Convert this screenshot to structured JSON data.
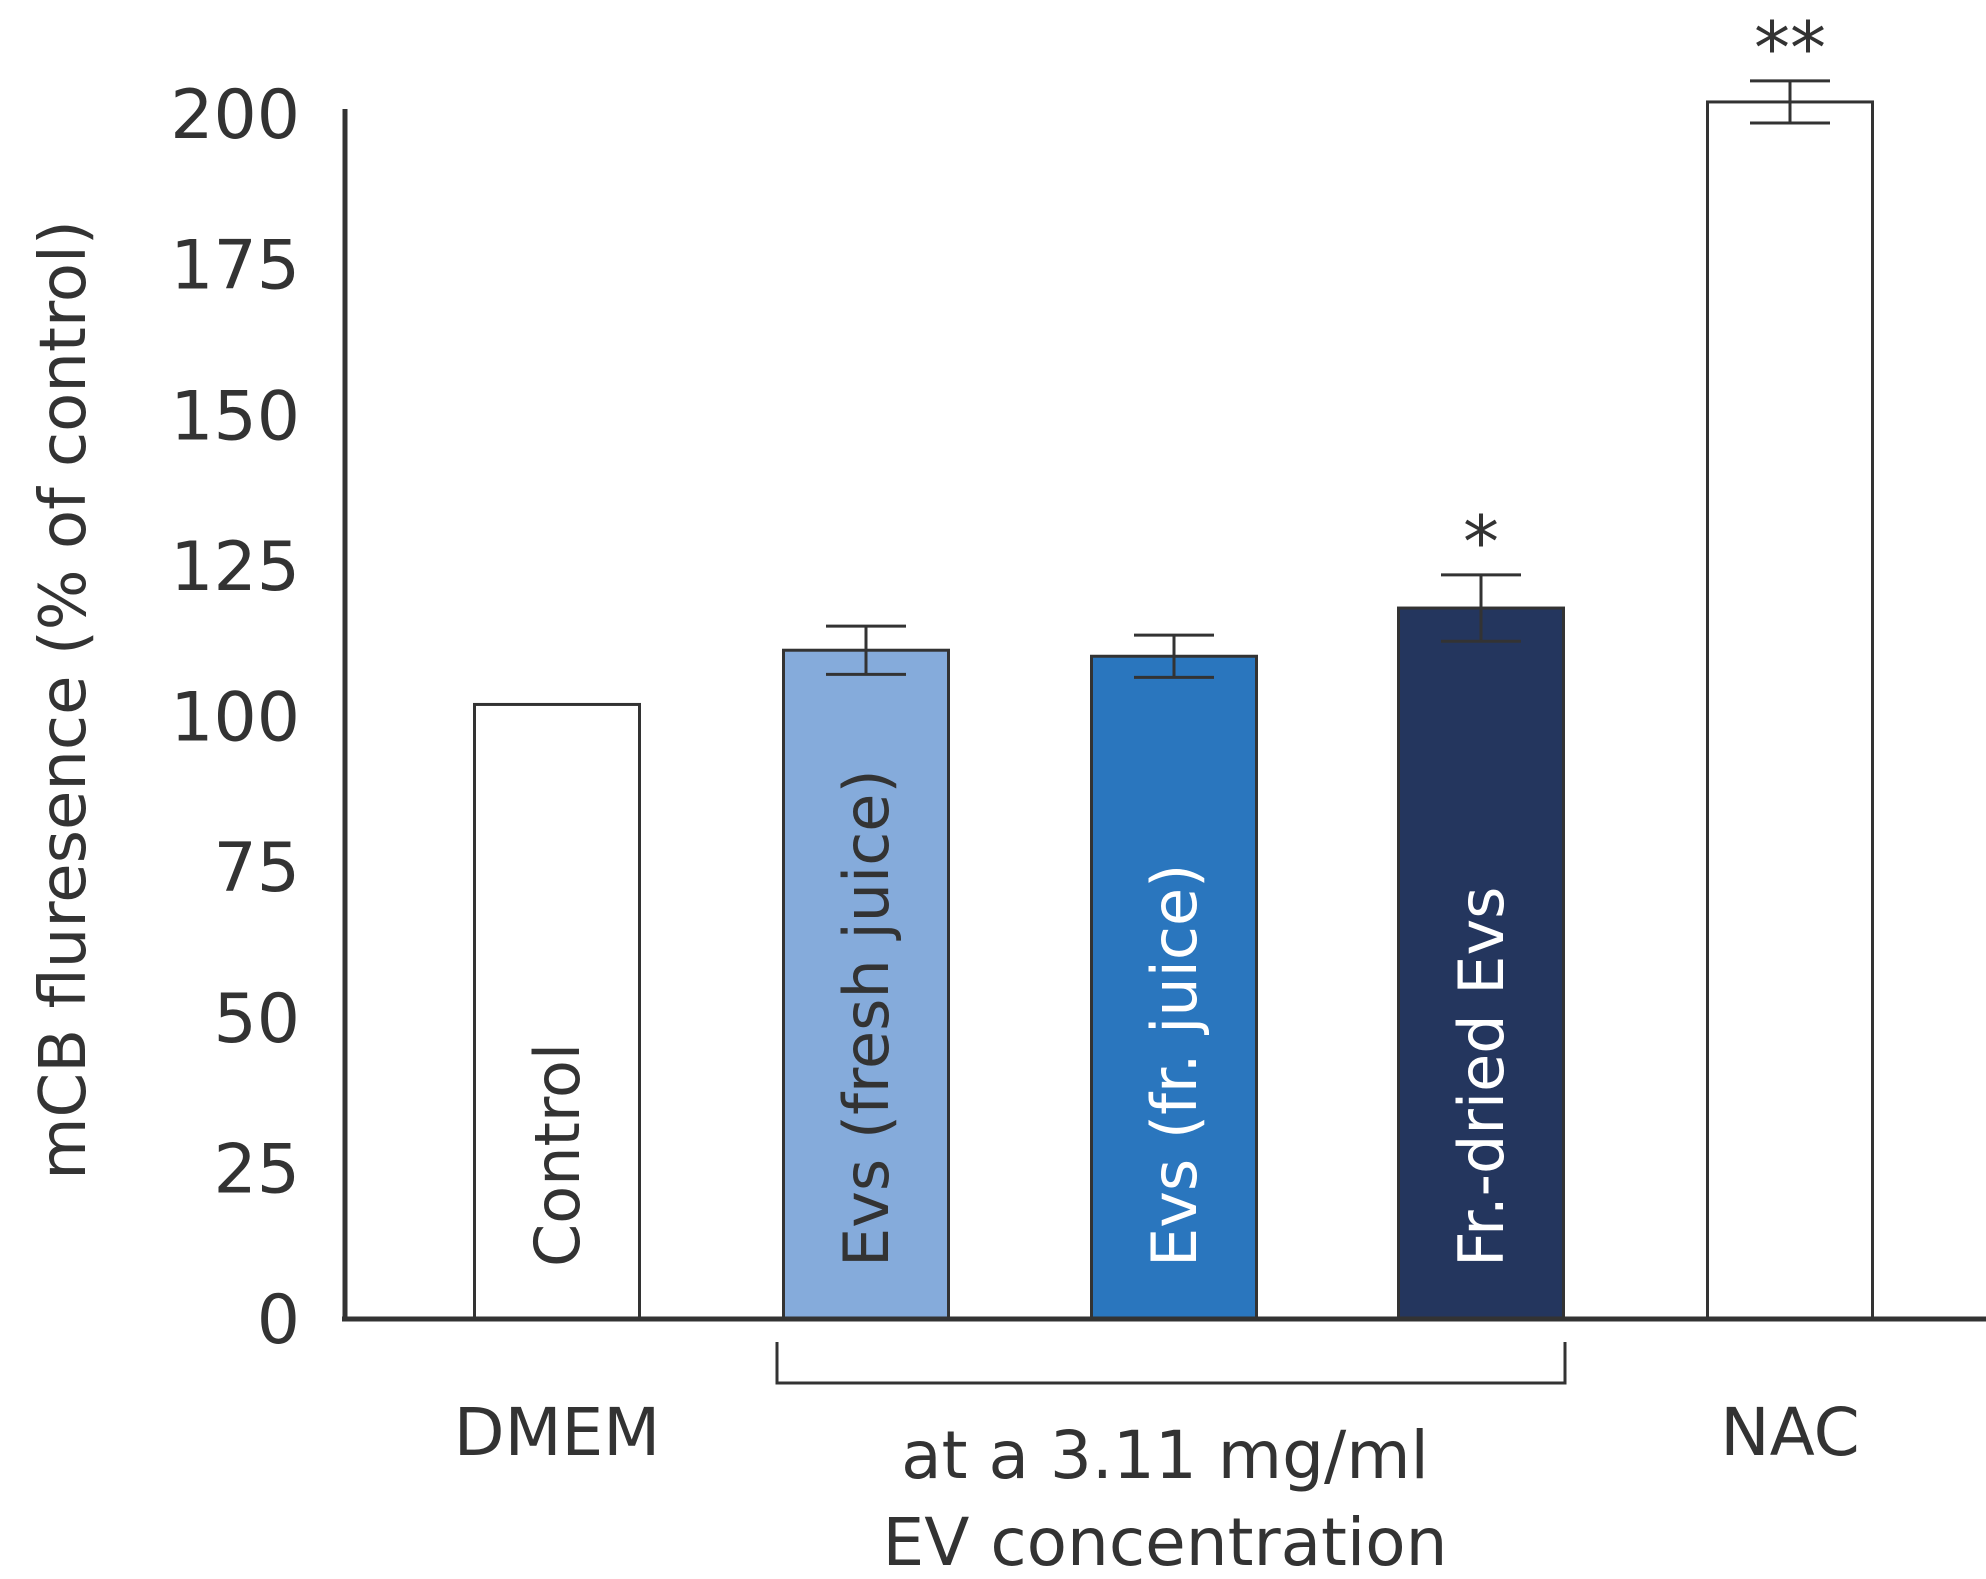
{
  "chart_data": {
    "type": "bar",
    "title": "",
    "ylabel": "mCB fluresence (% of control)",
    "xlabel": "",
    "ylim": [
      0,
      200
    ],
    "yticks": [
      0,
      25,
      50,
      75,
      100,
      125,
      150,
      175,
      200
    ],
    "categories": [
      "Control",
      "Evs (fresh juice)",
      "Evs (fr. juice)",
      "Fr.-dried Evs",
      "NAC"
    ],
    "values": [
      102,
      111,
      110,
      118,
      202
    ],
    "errors": [
      null,
      4,
      3.5,
      5.5,
      3.5
    ],
    "significance": [
      "",
      "",
      "",
      "*",
      "**"
    ],
    "bar_colors": [
      "#ffffff",
      "#85abdb",
      "#2a76be",
      "#24365e",
      "#ffffff"
    ],
    "bar_label_colors": [
      "#333333",
      "#333333",
      "#ffffff",
      "#ffffff",
      ""
    ],
    "group_labels": {
      "dmem": "DMEM",
      "ev_line1": "at a 3.11 mg/ml",
      "ev_line2": "EV concentration",
      "nac": "NAC"
    }
  }
}
